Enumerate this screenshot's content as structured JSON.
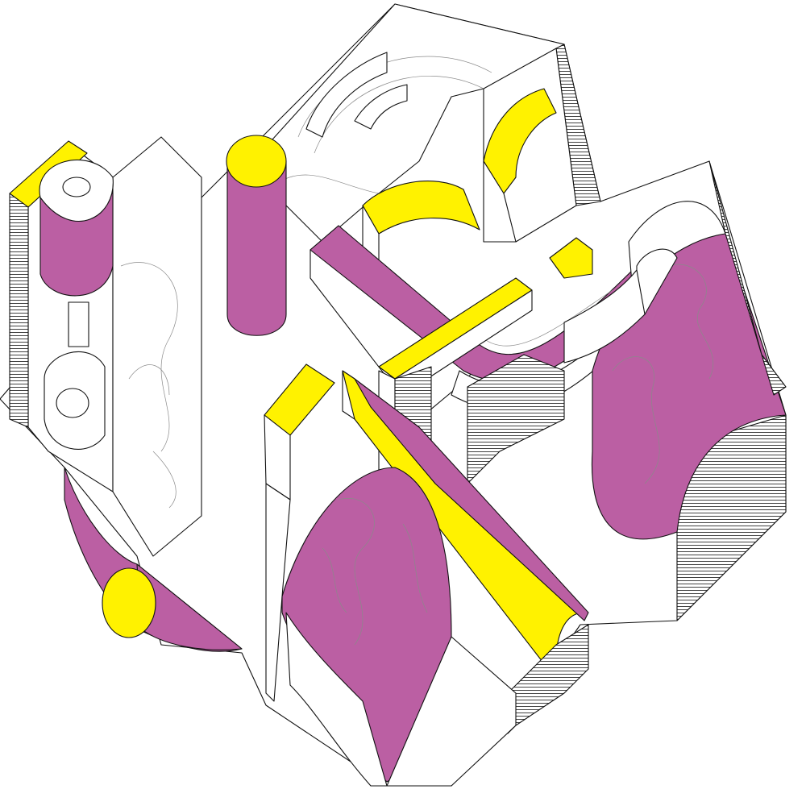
{
  "palette": {
    "magenta": "#bb5fa3",
    "yellow": "#fff200",
    "outline": "#111111",
    "background": "#ffffff"
  }
}
